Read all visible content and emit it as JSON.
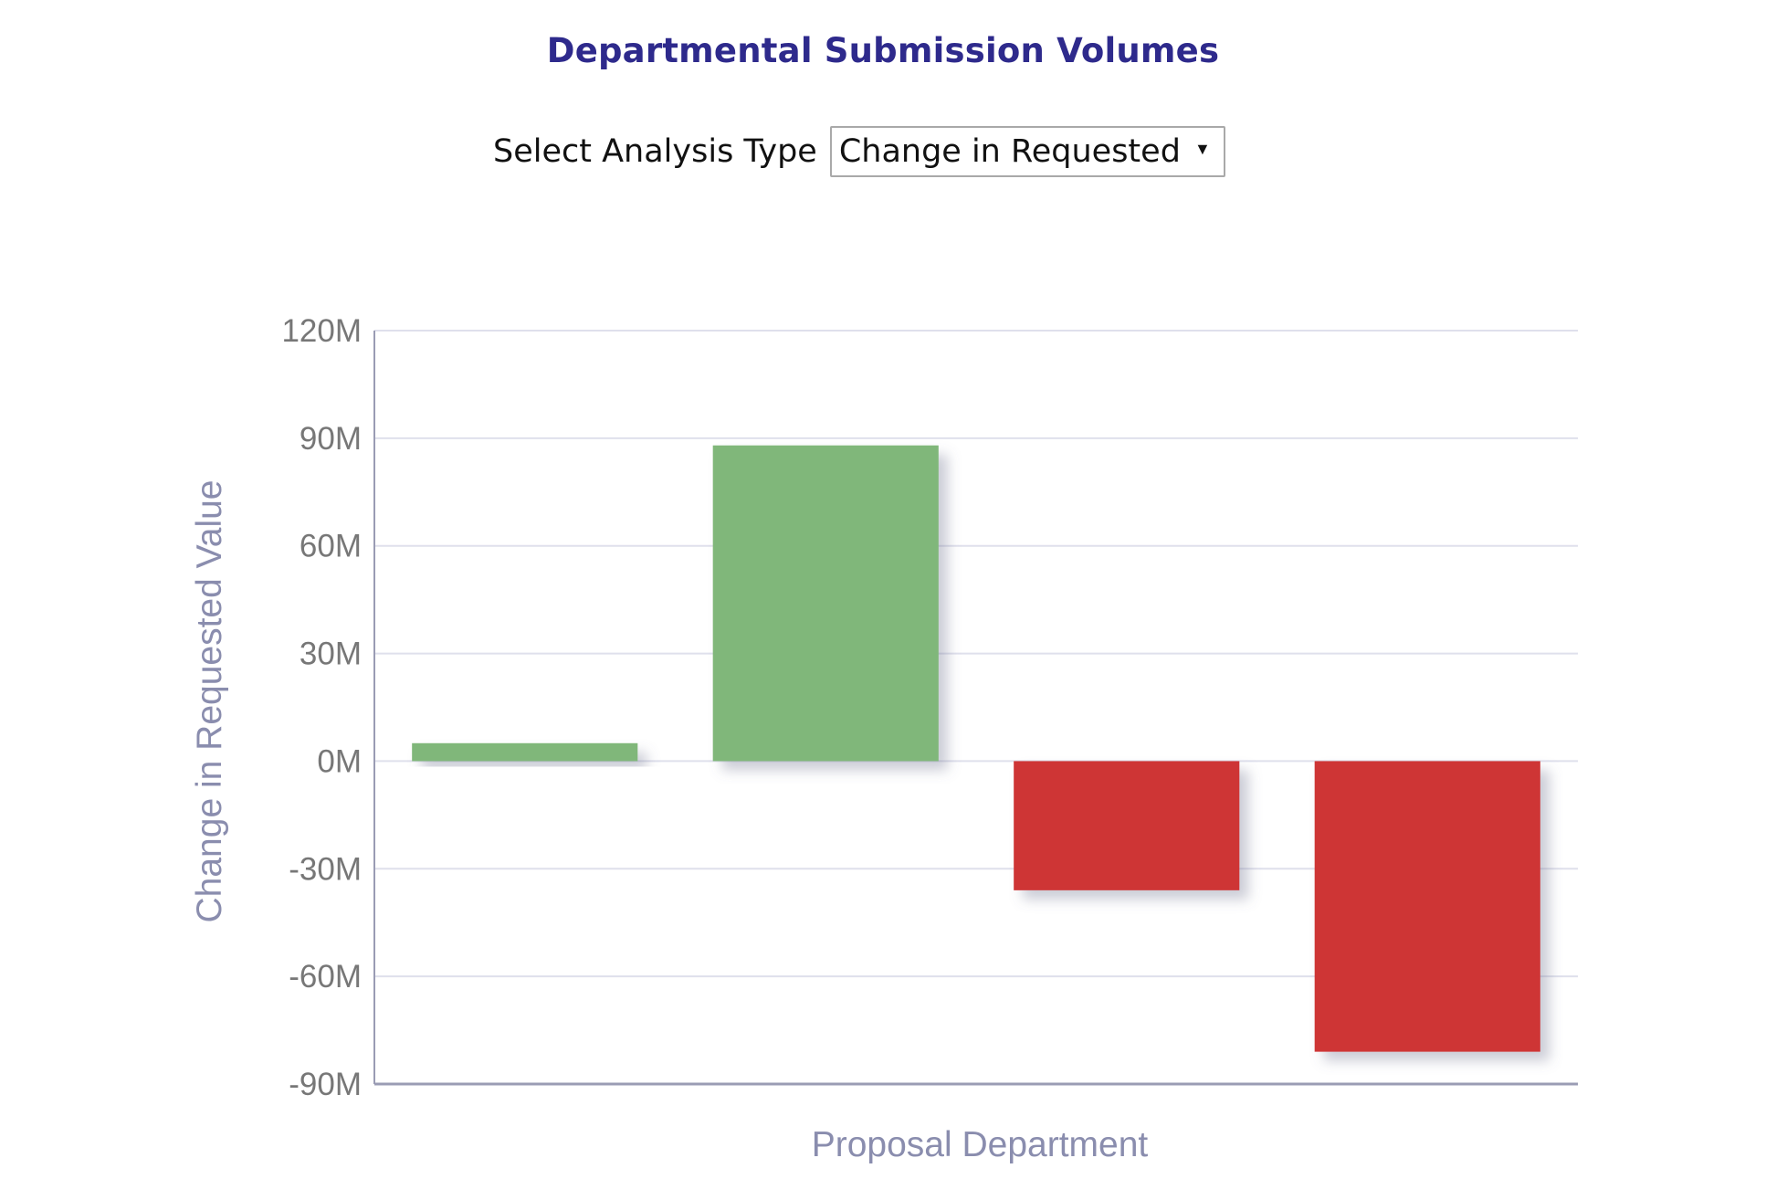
{
  "page": {
    "title": "Departmental Submission Volumes"
  },
  "controls": {
    "analysis_label": "Select Analysis Type",
    "analysis_selected": "Change in Requested"
  },
  "colors": {
    "positive": "#80b77a",
    "negative": "#ce3434",
    "title": "#2e2a8c",
    "axis_title": "#8a8dae",
    "gridline": "#dfe0ec"
  },
  "chart_data": {
    "type": "bar",
    "title": "Departmental Submission Volumes",
    "xlabel": "Proposal Department",
    "ylabel": "Change in Requested Value",
    "categories": [
      "",
      "",
      "",
      ""
    ],
    "values": [
      5,
      88,
      -36,
      -81
    ],
    "value_units": "M",
    "ylim": [
      -90,
      120
    ],
    "yticks": [
      120,
      90,
      60,
      30,
      0,
      -30,
      -60,
      -90
    ],
    "ytick_labels": [
      "120M",
      "90M",
      "60M",
      "30M",
      "0M",
      "-30M",
      "-60M",
      "-90M"
    ],
    "grid": true,
    "legend": "none"
  }
}
